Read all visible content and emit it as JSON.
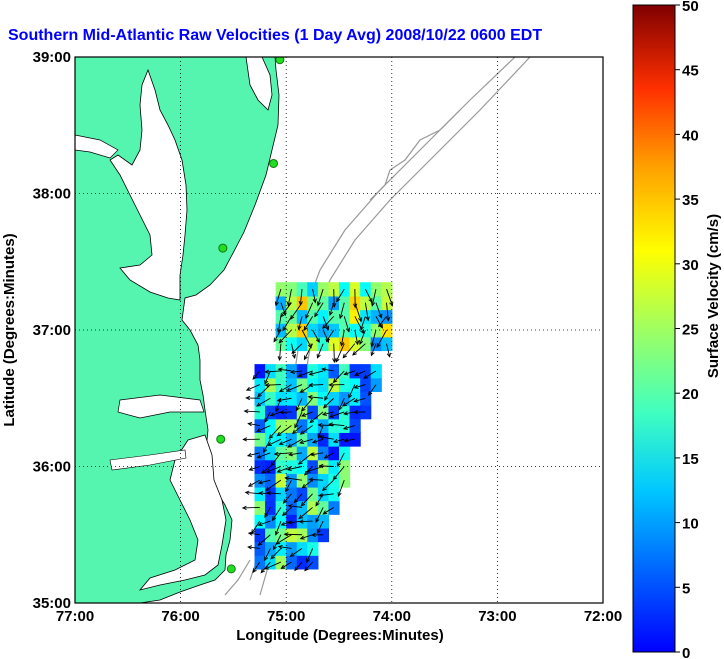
{
  "chart_data": {
    "type": "vector-field-map",
    "title": "Southern Mid-Atlantic Raw Velocities (1 Day Avg) 2008/10/22 0600 EDT",
    "xlabel": "Longitude (Degrees:Minutes)",
    "ylabel": "Latitude (Degrees:Minutes)",
    "x_ticks": [
      "77:00",
      "76:00",
      "75:00",
      "74:00",
      "73:00",
      "72:00"
    ],
    "y_ticks": [
      "39:00",
      "38:00",
      "37:00",
      "36:00",
      "35:00"
    ],
    "xlim": [
      -77,
      -72
    ],
    "ylim": [
      35,
      39
    ],
    "grid": true,
    "colorbar": {
      "label": "Surface Velocity (cm/s)",
      "range": [
        0,
        50
      ],
      "ticks": [
        "50",
        "45",
        "40",
        "35",
        "30",
        "25",
        "20",
        "15",
        "10",
        "5",
        "0"
      ]
    },
    "colors": {
      "land": "#55f5b0",
      "title": "#0000ff",
      "isobath": "#999999"
    },
    "stations": [
      {
        "lon": -75.06,
        "lat": 38.98
      },
      {
        "lon": -75.12,
        "lat": 38.22
      },
      {
        "lon": -75.6,
        "lat": 37.6
      },
      {
        "lon": -75.62,
        "lat": 36.2
      },
      {
        "lon": -75.52,
        "lat": 35.25
      }
    ],
    "velocity_regions": [
      {
        "lon_range": [
          -75.1,
          -74.0
        ],
        "lat_range": [
          36.85,
          37.35
        ],
        "mean_speed": 24,
        "mean_direction_deg": 260
      },
      {
        "lon_range": [
          -75.3,
          -74.1
        ],
        "lat_range": [
          35.25,
          36.75
        ],
        "mean_speed": 18,
        "mean_direction_deg": 210
      }
    ]
  }
}
